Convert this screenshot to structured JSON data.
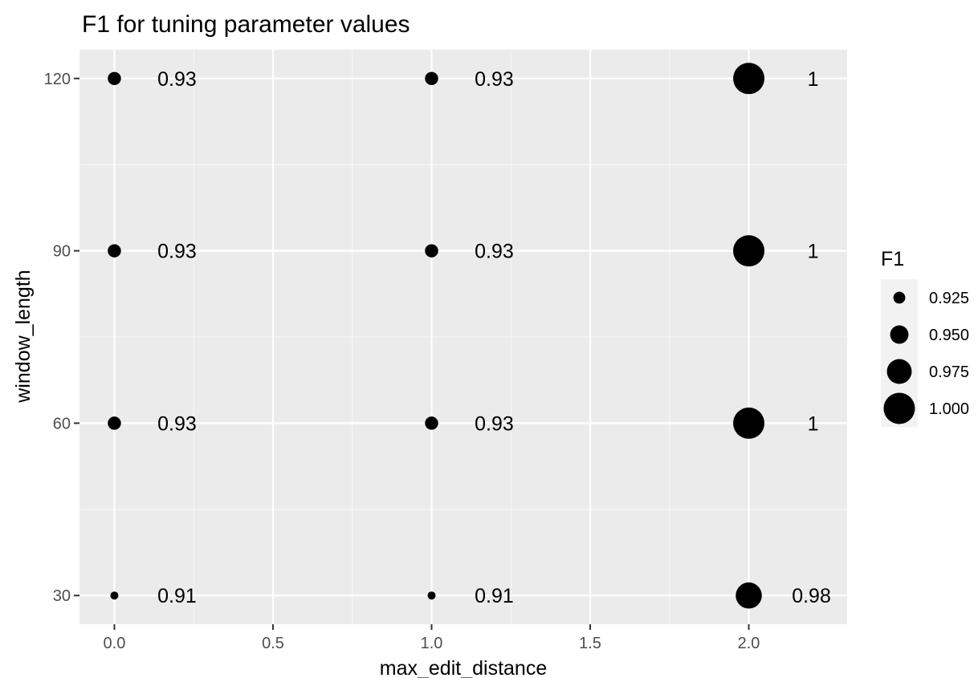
{
  "chart_data": {
    "type": "scatter",
    "title": "F1 for tuning parameter values",
    "xlabel": "max_edit_distance",
    "ylabel": "window_length",
    "xlim": [
      -0.11,
      2.31
    ],
    "ylim": [
      25,
      125
    ],
    "x_ticks": [
      0.0,
      0.5,
      1.0,
      1.5,
      2.0
    ],
    "x_tick_labels": [
      "0.0",
      "0.5",
      "1.0",
      "1.5",
      "2.0"
    ],
    "y_ticks": [
      30,
      60,
      90,
      120
    ],
    "y_tick_labels": [
      "30",
      "60",
      "90",
      "120"
    ],
    "grid": true,
    "size_variable": "F1",
    "points": [
      {
        "x": 0,
        "y": 30,
        "f1": 0.91,
        "label": "0.91"
      },
      {
        "x": 0,
        "y": 60,
        "f1": 0.93,
        "label": "0.93"
      },
      {
        "x": 0,
        "y": 90,
        "f1": 0.93,
        "label": "0.93"
      },
      {
        "x": 0,
        "y": 120,
        "f1": 0.93,
        "label": "0.93"
      },
      {
        "x": 1,
        "y": 30,
        "f1": 0.91,
        "label": "0.91"
      },
      {
        "x": 1,
        "y": 60,
        "f1": 0.93,
        "label": "0.93"
      },
      {
        "x": 1,
        "y": 90,
        "f1": 0.93,
        "label": "0.93"
      },
      {
        "x": 1,
        "y": 120,
        "f1": 0.93,
        "label": "0.93"
      },
      {
        "x": 2,
        "y": 30,
        "f1": 0.98,
        "label": "0.98"
      },
      {
        "x": 2,
        "y": 60,
        "f1": 1.0,
        "label": "1"
      },
      {
        "x": 2,
        "y": 90,
        "f1": 1.0,
        "label": "1"
      },
      {
        "x": 2,
        "y": 120,
        "f1": 1.0,
        "label": "1"
      }
    ],
    "legend": {
      "title": "F1",
      "placement": "right",
      "entries": [
        {
          "value": 0.925,
          "label": "0.925"
        },
        {
          "value": 0.95,
          "label": "0.950"
        },
        {
          "value": 0.975,
          "label": "0.975"
        },
        {
          "value": 1.0,
          "label": "1.000"
        }
      ]
    },
    "colors": {
      "panel": "#ebebeb",
      "grid_major": "#ffffff",
      "grid_minor": "#f7f7f7",
      "point": "#000000",
      "legend_key": "#f2f2f2",
      "tick_text": "#4d4d4d",
      "tick_mark": "#333333"
    }
  }
}
